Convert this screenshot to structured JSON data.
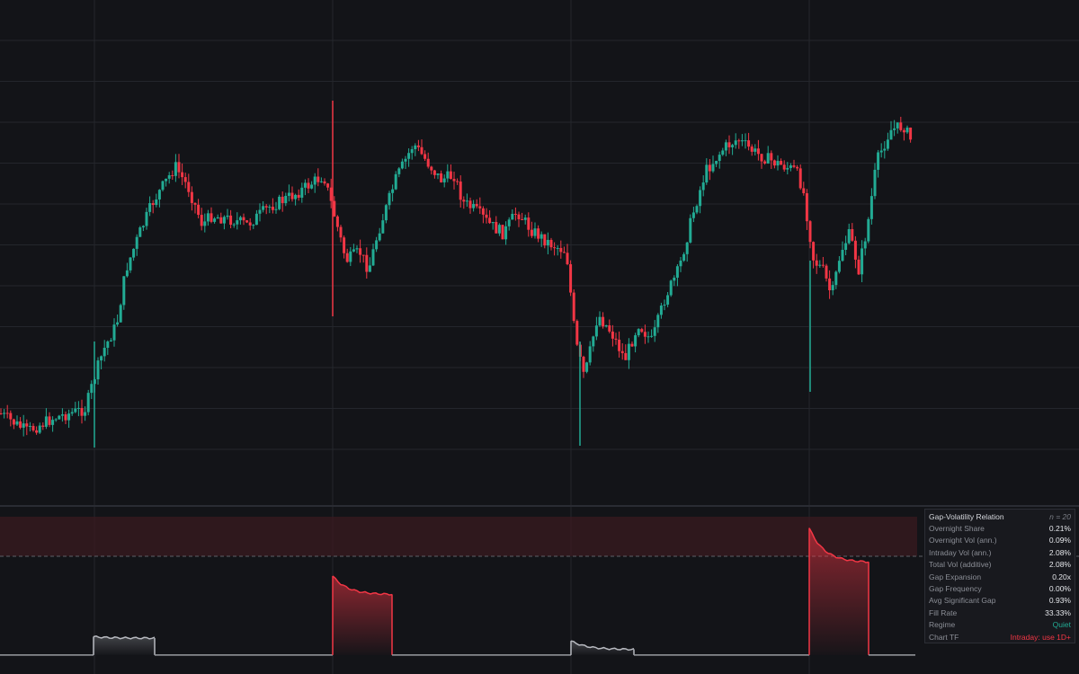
{
  "colors": {
    "background": "#131418",
    "grid": "#24262c",
    "up_candle": "#22ab94",
    "down_candle": "#f23645",
    "gap_line_low": "#9a9ca2",
    "gap_line_high": "#f23645",
    "threshold_zone": "#3a1a1f"
  },
  "chart_data": {
    "type": "candlestick",
    "price_pane": {
      "candles": [],
      "note_visible": "",
      "day_breaks_at_candle_index": [
        35,
        122,
        210,
        298
      ]
    },
    "indicator_pane": {
      "type": "area",
      "threshold_level": 0.72,
      "shaded_zone": [
        0.72,
        1.0
      ],
      "series": [
        {
          "day": 1,
          "start": 0.02,
          "end": 0.02
        },
        {
          "day": 2,
          "start": 0.15,
          "end": 0.14
        },
        {
          "day": 3,
          "start": 0.02,
          "end": 0.02
        },
        {
          "day": 4,
          "start": 0.58,
          "end": 0.45
        },
        {
          "day": 5,
          "start": 0.02,
          "end": 0.02
        },
        {
          "day": 6,
          "start": 0.12,
          "end": 0.06
        },
        {
          "day": 7,
          "start": 0.02,
          "end": 0.02
        },
        {
          "day": 8,
          "start": 0.92,
          "end": 0.68
        },
        {
          "day": 9,
          "start": 0.02,
          "end": 0.02
        }
      ]
    }
  },
  "stats_table": {
    "title": "Gap-Volatility Relation",
    "n_label": "n = 20",
    "rows": [
      {
        "label": "Overnight Share",
        "value": "0.21%",
        "tone": "normal"
      },
      {
        "label": "Overnight Vol (ann.)",
        "value": "0.09%",
        "tone": "normal"
      },
      {
        "label": "Intraday Vol (ann.)",
        "value": "2.08%",
        "tone": "normal"
      },
      {
        "label": "Total Vol (additive)",
        "value": "2.08%",
        "tone": "normal"
      },
      {
        "label": "Gap Expansion",
        "value": "0.20x",
        "tone": "normal"
      },
      {
        "label": "Gap Frequency",
        "value": "0.00%",
        "tone": "normal"
      },
      {
        "label": "Avg Significant Gap",
        "value": "0.93%",
        "tone": "normal"
      },
      {
        "label": "Fill Rate",
        "value": "33.33%",
        "tone": "normal"
      },
      {
        "label": "Regime",
        "value": "Quiet",
        "tone": "green"
      },
      {
        "label": "Chart TF",
        "value": "Intraday: use 1D+",
        "tone": "red"
      }
    ]
  }
}
